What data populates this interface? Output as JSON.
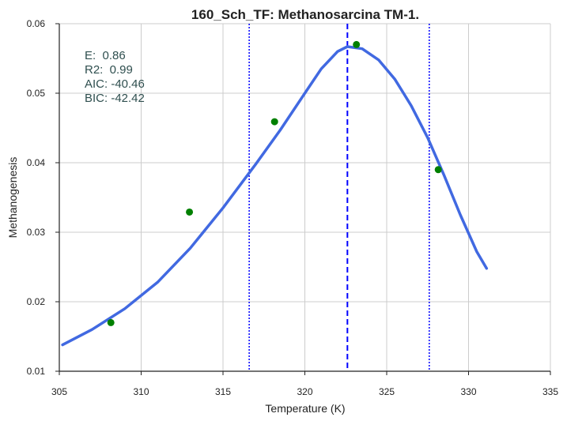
{
  "chart_data": {
    "type": "scatter",
    "title": "160_Sch_TF: Methanosarcina TM-1.",
    "xlabel": "Temperature (K)",
    "ylabel": "Methanogenesis",
    "xlim": [
      305,
      335
    ],
    "ylim": [
      0.01,
      0.06
    ],
    "x_ticks": [
      "305",
      "310",
      "315",
      "320",
      "325",
      "330",
      "335"
    ],
    "y_ticks": [
      "0.01",
      "0.02",
      "0.03",
      "0.04",
      "0.05",
      "0.06"
    ],
    "grid": true,
    "colors": {
      "points": "#008000",
      "fit_line": "#4169e1",
      "peak_line": "#0000ff",
      "bound_lines": "#0000ff",
      "stats_text": "#2f4f4f",
      "grid": "#cccccc"
    },
    "series": [
      {
        "type": "scatter",
        "points": [
          {
            "x": 308.15,
            "y": 0.017
          },
          {
            "x": 312.95,
            "y": 0.0329
          },
          {
            "x": 318.15,
            "y": 0.0459
          },
          {
            "x": 323.15,
            "y": 0.057
          },
          {
            "x": 328.15,
            "y": 0.039
          }
        ]
      },
      {
        "type": "line",
        "points": [
          {
            "x": 305.2,
            "y": 0.0138
          },
          {
            "x": 307.0,
            "y": 0.016
          },
          {
            "x": 309.0,
            "y": 0.019
          },
          {
            "x": 311.0,
            "y": 0.0228
          },
          {
            "x": 313.0,
            "y": 0.0277
          },
          {
            "x": 315.0,
            "y": 0.0335
          },
          {
            "x": 317.0,
            "y": 0.0398
          },
          {
            "x": 318.5,
            "y": 0.0447
          },
          {
            "x": 320.0,
            "y": 0.05
          },
          {
            "x": 321.0,
            "y": 0.0535
          },
          {
            "x": 322.0,
            "y": 0.056
          },
          {
            "x": 322.6,
            "y": 0.0567
          },
          {
            "x": 323.5,
            "y": 0.0564
          },
          {
            "x": 324.5,
            "y": 0.0548
          },
          {
            "x": 325.5,
            "y": 0.052
          },
          {
            "x": 326.5,
            "y": 0.0482
          },
          {
            "x": 327.5,
            "y": 0.0436
          },
          {
            "x": 328.5,
            "y": 0.0382
          },
          {
            "x": 329.5,
            "y": 0.0325
          },
          {
            "x": 330.5,
            "y": 0.0272
          },
          {
            "x": 331.1,
            "y": 0.0248
          }
        ]
      }
    ],
    "vlines": [
      {
        "x": 316.6,
        "style": "dotted"
      },
      {
        "x": 322.6,
        "style": "dashed"
      },
      {
        "x": 327.6,
        "style": "dotted"
      }
    ],
    "annotations": [
      "E:  0.86",
      "R2:  0.99",
      "AIC: -40.46",
      "BIC: -42.42"
    ]
  }
}
